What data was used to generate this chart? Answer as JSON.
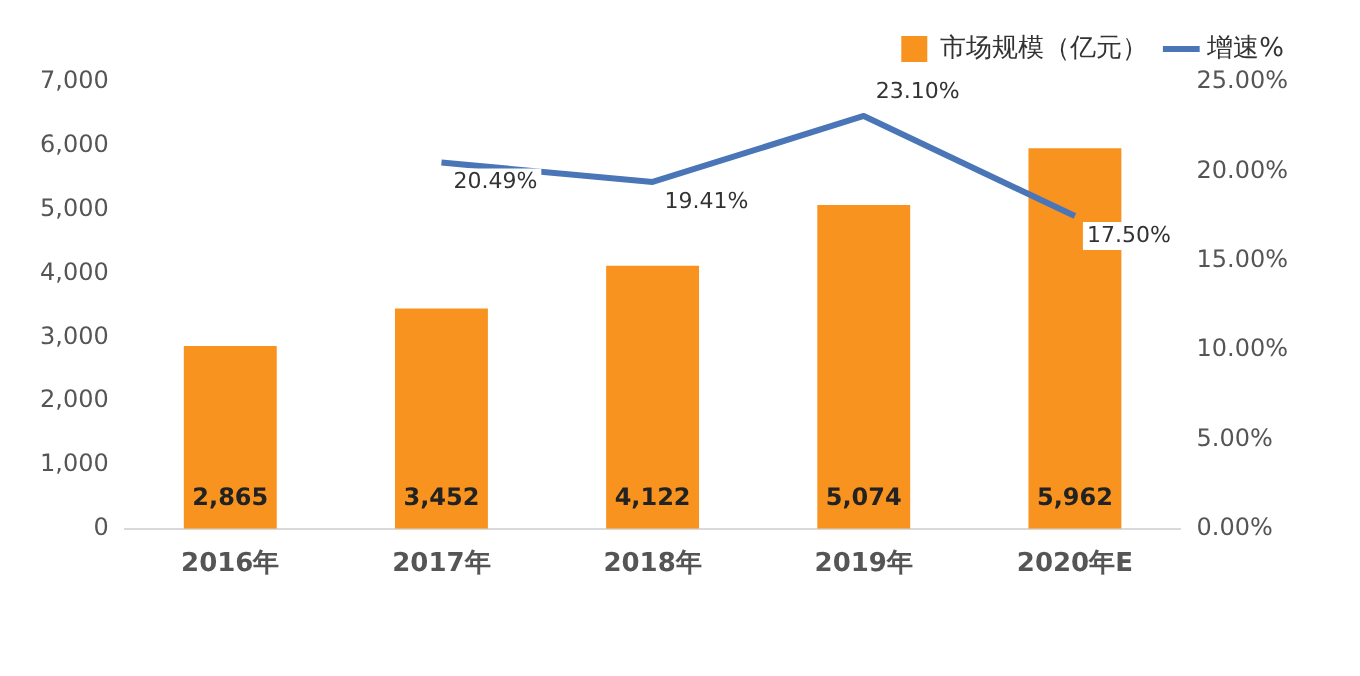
{
  "chart_data": {
    "type": "bar",
    "categories": [
      "2016年",
      "2017年",
      "2018年",
      "2019年",
      "2020年E"
    ],
    "series": [
      {
        "name": "市场规模（亿元）",
        "color": "#f7931e",
        "values": [
          2865,
          3452,
          4122,
          5074,
          5962
        ],
        "value_labels": [
          "2,865",
          "3,452",
          "4,122",
          "5,074",
          "5,962"
        ]
      },
      {
        "name": "增速%",
        "color": "#4a76b8",
        "type": "line",
        "axis": "y2",
        "values": [
          null,
          20.49,
          19.41,
          23.1,
          17.5
        ],
        "value_labels": [
          null,
          "20.49%",
          "19.41%",
          "23.10%",
          "17.50%"
        ]
      }
    ],
    "ylim": [
      0,
      7000
    ],
    "yticks": [
      0,
      {
        "value": 1000,
        "label": "1,000"
      },
      {
        "value": 2000,
        "label": "2,000"
      },
      {
        "value": 3000,
        "label": "3,000"
      },
      {
        "value": 4000,
        "label": "4,000"
      },
      {
        "value": 5000,
        "label": "5,000"
      },
      {
        "value": 6000,
        "label": "6,000"
      },
      {
        "value": 7000,
        "label": "7,000"
      }
    ],
    "y2lim": [
      0,
      25
    ],
    "y2ticks": [
      {
        "value": 0,
        "label": "0.00%"
      },
      {
        "value": 5,
        "label": "5.00%"
      },
      {
        "value": 10,
        "label": "10.00%"
      },
      {
        "value": 15,
        "label": "15.00%"
      },
      {
        "value": 20,
        "label": "20.00%"
      },
      {
        "value": 25,
        "label": "25.00%"
      }
    ],
    "legend": "top right",
    "marker": "none"
  }
}
